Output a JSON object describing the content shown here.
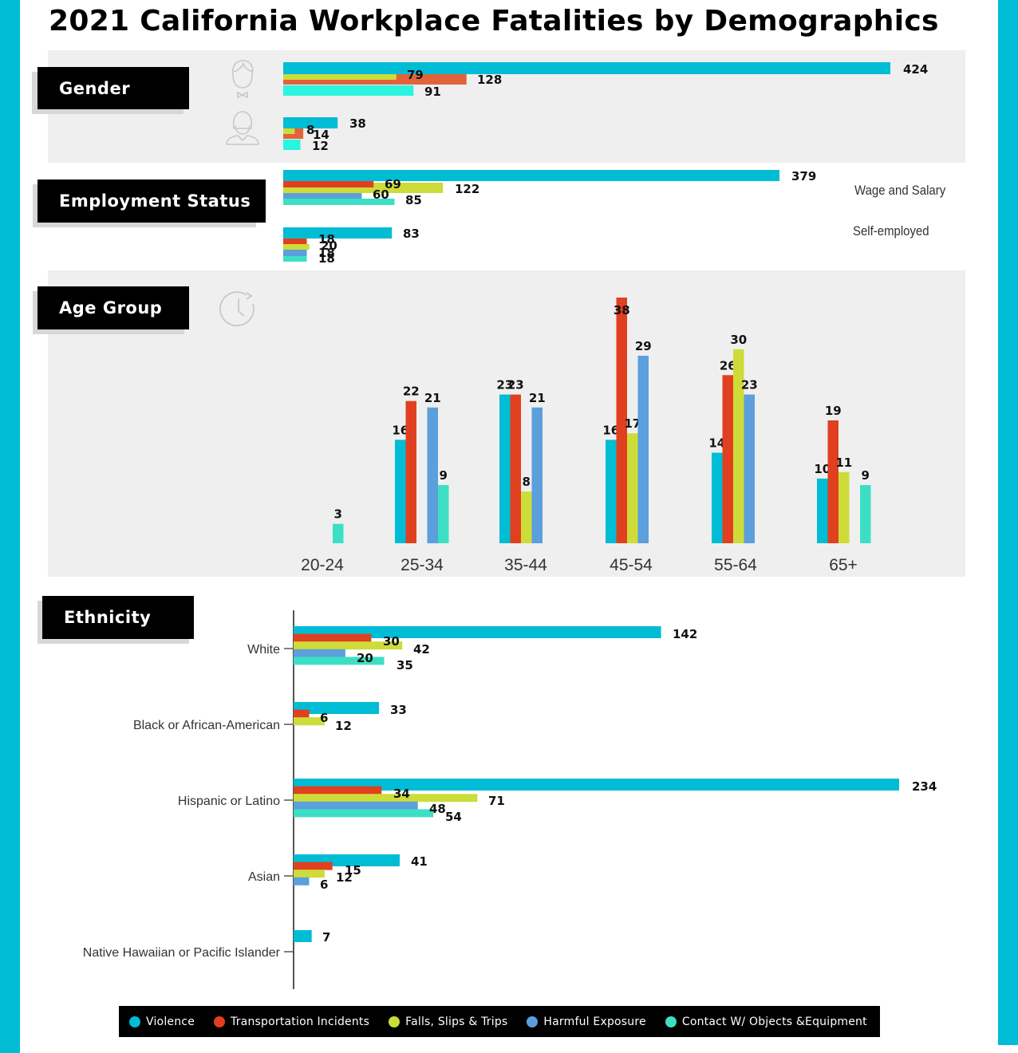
{
  "title": "2021 California Workplace Fatalities by Demographics",
  "colors": {
    "accent": "#00bcd4",
    "violence": "#00bcd4",
    "transportation": "#e0401f",
    "falls": "#cddc39",
    "harmful": "#5b9fdc",
    "contact": "#3ddfc4",
    "contact_gender": "#29f5e0",
    "transportation_gender": "#e2623a"
  },
  "sections": {
    "gender": {
      "label": "Gender",
      "icons": [
        "man-icon",
        "woman-icon"
      ]
    },
    "employment": {
      "label": "Employment Status"
    },
    "age": {
      "label": "Age Group",
      "icon": "clock-icon"
    },
    "ethnicity": {
      "label": "Ethnicity"
    }
  },
  "employment_labels": [
    "Wage and Salary",
    "Self-employed"
  ],
  "legend": [
    {
      "key": "violence",
      "label": "Violence",
      "color": "#00bcd4"
    },
    {
      "key": "transportation",
      "label": "Transportation Incidents",
      "color": "#e0401f"
    },
    {
      "key": "falls",
      "label": "Falls, Slips & Trips",
      "color": "#cddc39"
    },
    {
      "key": "harmful",
      "label": "Harmful Exposure",
      "color": "#5b9fdc"
    },
    {
      "key": "contact",
      "label": "Contact W/ Objects &Equipment",
      "color": "#3ddfc4"
    }
  ],
  "chart_data": [
    {
      "type": "bar",
      "orientation": "horizontal",
      "title": "Gender",
      "categories": [
        "Male",
        "Female"
      ],
      "series": [
        {
          "name": "Violence",
          "values": [
            424,
            38
          ]
        },
        {
          "name": "Transportation Incidents",
          "values": [
            128,
            14
          ]
        },
        {
          "name": "Falls, Slips & Trips",
          "values": [
            79,
            8
          ]
        },
        {
          "name": "Contact W/ Objects &Equipment",
          "values": [
            91,
            12
          ]
        }
      ]
    },
    {
      "type": "bar",
      "orientation": "horizontal",
      "title": "Employment Status",
      "categories": [
        "Wage and Salary",
        "Self-employed"
      ],
      "series": [
        {
          "name": "Violence",
          "values": [
            379,
            83
          ]
        },
        {
          "name": "Transportation Incidents",
          "values": [
            69,
            18
          ]
        },
        {
          "name": "Falls, Slips & Trips",
          "values": [
            122,
            20
          ]
        },
        {
          "name": "Harmful Exposure",
          "values": [
            60,
            18
          ]
        },
        {
          "name": "Contact W/ Objects &Equipment",
          "values": [
            85,
            18
          ]
        }
      ]
    },
    {
      "type": "bar",
      "orientation": "vertical",
      "title": "Age Group",
      "categories": [
        "20-24",
        "25-34",
        "35-44",
        "45-54",
        "55-64",
        "65+"
      ],
      "series": [
        {
          "name": "Violence",
          "values": [
            null,
            16,
            23,
            16,
            14,
            10
          ]
        },
        {
          "name": "Transportation Incidents",
          "values": [
            null,
            22,
            23,
            38,
            26,
            19
          ]
        },
        {
          "name": "Falls, Slips & Trips",
          "values": [
            null,
            null,
            8,
            17,
            30,
            11
          ]
        },
        {
          "name": "Harmful Exposure",
          "values": [
            null,
            21,
            21,
            29,
            23,
            null
          ]
        },
        {
          "name": "Contact W/ Objects &Equipment",
          "values": [
            3,
            9,
            null,
            null,
            null,
            9
          ]
        }
      ]
    },
    {
      "type": "bar",
      "orientation": "horizontal",
      "title": "Ethnicity",
      "categories": [
        "White",
        "Black or African-American",
        "Hispanic or Latino",
        "Asian",
        "Native Hawaiian or Pacific Islander"
      ],
      "series": [
        {
          "name": "Violence",
          "values": [
            142,
            33,
            234,
            41,
            7
          ]
        },
        {
          "name": "Transportation Incidents",
          "values": [
            30,
            6,
            34,
            15,
            null
          ]
        },
        {
          "name": "Falls, Slips & Trips",
          "values": [
            42,
            12,
            71,
            12,
            null
          ]
        },
        {
          "name": "Harmful Exposure",
          "values": [
            20,
            null,
            48,
            6,
            null
          ]
        },
        {
          "name": "Contact W/ Objects &Equipment",
          "values": [
            35,
            null,
            54,
            null,
            null
          ]
        }
      ]
    }
  ]
}
